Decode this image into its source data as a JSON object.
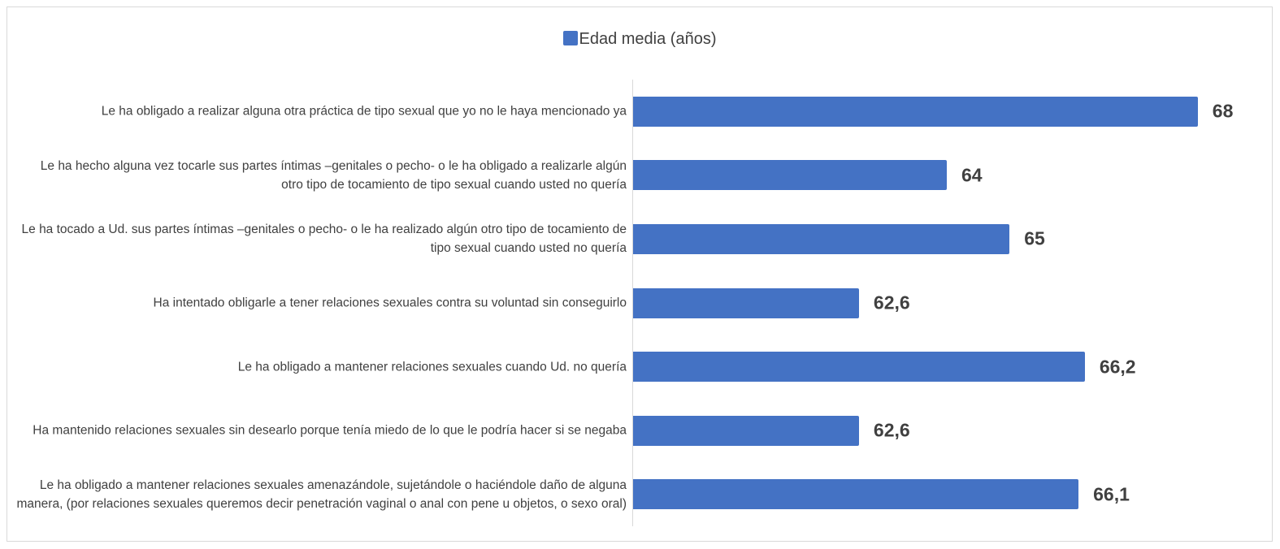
{
  "chart_data": {
    "type": "barh",
    "categories": [
      "Le ha obligado a realizar alguna otra práctica de tipo sexual que yo no le haya mencionado ya",
      "Le ha hecho alguna vez tocarle sus partes íntimas –genitales o pecho- o le ha obligado a realizarle algún otro tipo de tocamiento de tipo sexual cuando usted no quería",
      "Le ha tocado a Ud. sus partes íntimas –genitales o pecho- o le ha realizado algún otro tipo de tocamiento de tipo sexual cuando usted no quería",
      "Ha intentado obligarle a tener relaciones sexuales contra su voluntad sin conseguirlo",
      "Le ha obligado a mantener relaciones sexuales cuando Ud. no quería",
      "Ha mantenido relaciones sexuales sin desearlo porque tenía miedo de lo que le podría hacer si se negaba",
      "Le ha obligado a mantener relaciones sexuales amenazándole, sujetándole o haciéndole daño de alguna manera, (por relaciones sexuales queremos decir penetración vaginal o anal con pene u objetos, o sexo oral)"
    ],
    "series": [
      {
        "name": "Edad media (años)",
        "color": "#4472c4",
        "values": [
          68,
          64,
          65,
          62.6,
          66.2,
          62.6,
          66.1
        ],
        "value_labels": [
          "68",
          "64",
          "65",
          "62,6",
          "66,2",
          "62,6",
          "66,1"
        ]
      }
    ],
    "xlim": [
      59,
      69
    ],
    "legend": "top"
  }
}
